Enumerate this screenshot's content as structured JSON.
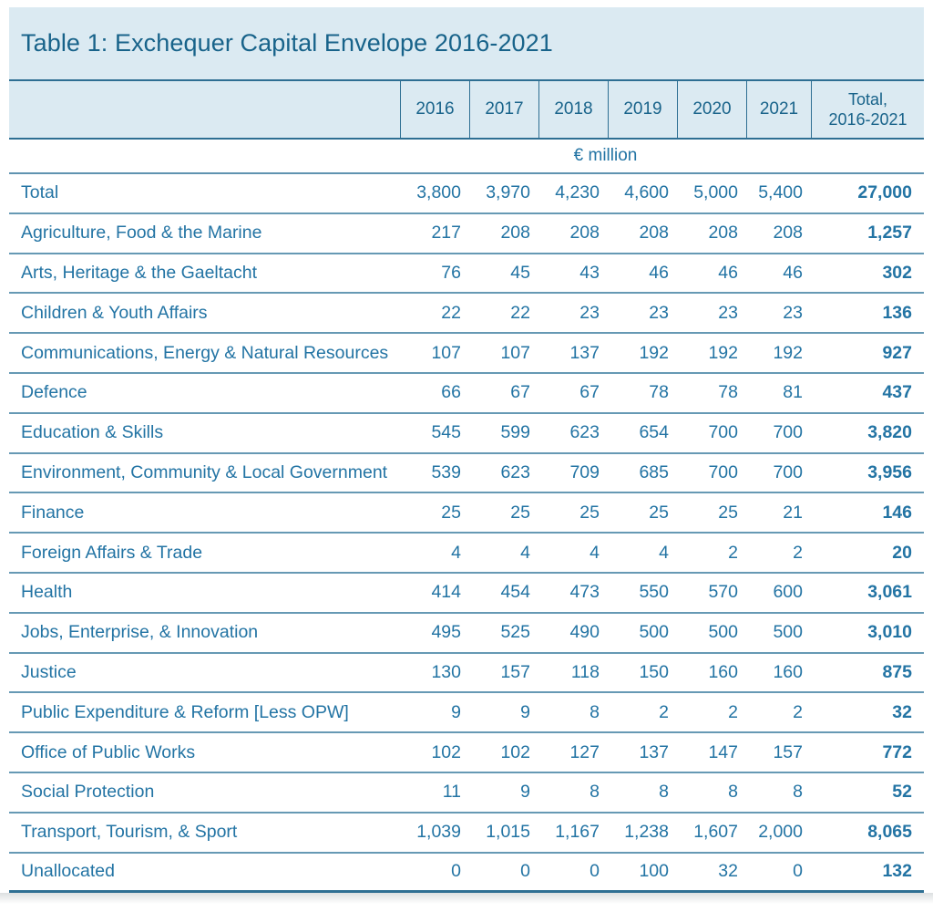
{
  "colors": {
    "band_background": "#dbeaf2",
    "heading_text": "#18638a",
    "body_text": "#2374a4",
    "heavy_rule": "#2e6f93",
    "light_rule": "#6699b4"
  },
  "chart_data": {
    "type": "table",
    "title": "Table 1: Exchequer Capital Envelope 2016-2021",
    "unit": "€ million",
    "columns": [
      "2016",
      "2017",
      "2018",
      "2019",
      "2020",
      "2021"
    ],
    "total_column_header": [
      "Total,",
      "2016-2021"
    ],
    "rows": [
      {
        "label": "Total",
        "values": [
          "3,800",
          "3,970",
          "4,230",
          "4,600",
          "5,000",
          "5,400"
        ],
        "total": "27,000"
      },
      {
        "label": "Agriculture, Food & the Marine",
        "values": [
          "217",
          "208",
          "208",
          "208",
          "208",
          "208"
        ],
        "total": "1,257"
      },
      {
        "label": "Arts, Heritage & the Gaeltacht",
        "values": [
          "76",
          "45",
          "43",
          "46",
          "46",
          "46"
        ],
        "total": "302"
      },
      {
        "label": "Children & Youth Affairs",
        "values": [
          "22",
          "22",
          "23",
          "23",
          "23",
          "23"
        ],
        "total": "136"
      },
      {
        "label": "Communications, Energy & Natural Resources",
        "values": [
          "107",
          "107",
          "137",
          "192",
          "192",
          "192"
        ],
        "total": "927"
      },
      {
        "label": "Defence",
        "values": [
          "66",
          "67",
          "67",
          "78",
          "78",
          "81"
        ],
        "total": "437"
      },
      {
        "label": "Education & Skills",
        "values": [
          "545",
          "599",
          "623",
          "654",
          "700",
          "700"
        ],
        "total": "3,820"
      },
      {
        "label": "Environment, Community & Local Government",
        "values": [
          "539",
          "623",
          "709",
          "685",
          "700",
          "700"
        ],
        "total": "3,956"
      },
      {
        "label": "Finance",
        "values": [
          "25",
          "25",
          "25",
          "25",
          "25",
          "21"
        ],
        "total": "146"
      },
      {
        "label": "Foreign Affairs & Trade",
        "values": [
          "4",
          "4",
          "4",
          "4",
          "2",
          "2"
        ],
        "total": "20"
      },
      {
        "label": "Health",
        "values": [
          "414",
          "454",
          "473",
          "550",
          "570",
          "600"
        ],
        "total": "3,061"
      },
      {
        "label": "Jobs, Enterprise, & Innovation",
        "values": [
          "495",
          "525",
          "490",
          "500",
          "500",
          "500"
        ],
        "total": "3,010"
      },
      {
        "label": "Justice",
        "values": [
          "130",
          "157",
          "118",
          "150",
          "160",
          "160"
        ],
        "total": "875"
      },
      {
        "label": "Public Expenditure & Reform [Less OPW]",
        "values": [
          "9",
          "9",
          "8",
          "2",
          "2",
          "2"
        ],
        "total": "32"
      },
      {
        "label": "Office of Public Works",
        "values": [
          "102",
          "102",
          "127",
          "137",
          "147",
          "157"
        ],
        "total": "772"
      },
      {
        "label": "Social Protection",
        "values": [
          "11",
          "9",
          "8",
          "8",
          "8",
          "8"
        ],
        "total": "52"
      },
      {
        "label": "Transport, Tourism, & Sport",
        "values": [
          "1,039",
          "1,015",
          "1,167",
          "1,238",
          "1,607",
          "2,000"
        ],
        "total": "8,065"
      },
      {
        "label": "Unallocated",
        "values": [
          "0",
          "0",
          "0",
          "100",
          "32",
          "0"
        ],
        "total": "132"
      }
    ]
  }
}
